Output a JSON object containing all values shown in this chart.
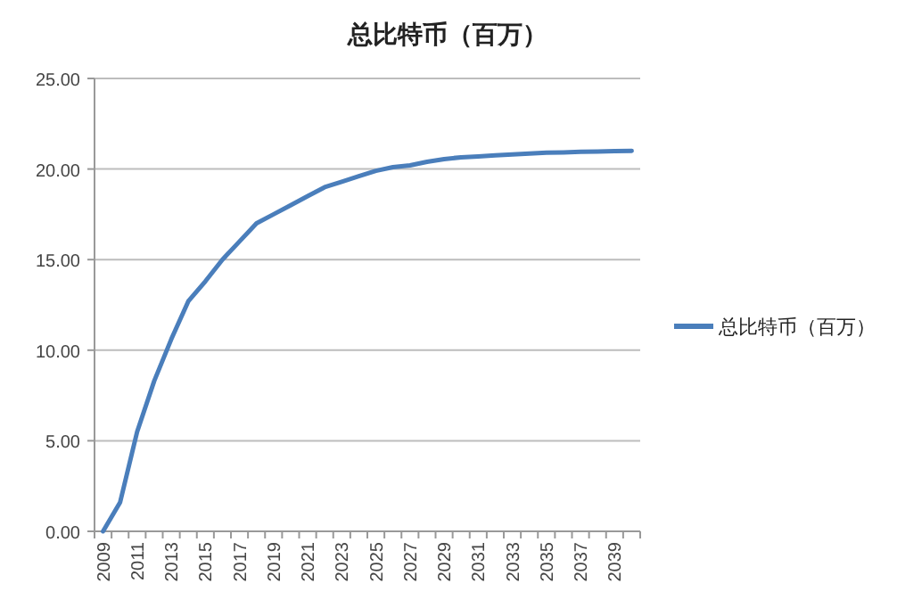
{
  "chart_data": {
    "type": "line",
    "title": "总比特币（百万）",
    "categories": [
      "2009",
      null,
      "2011",
      null,
      "2013",
      null,
      "2015",
      null,
      "2017",
      null,
      "2019",
      null,
      "2021",
      null,
      "2023",
      null,
      "2025",
      null,
      "2027",
      null,
      "2029",
      null,
      "2031",
      null,
      "2033",
      null,
      "2035",
      null,
      "2037",
      null,
      "2039",
      null
    ],
    "series": [
      {
        "name": "总比特币（百万）",
        "color": "#4a7ebb",
        "values": [
          0,
          1.6,
          5.5,
          8.3,
          10.6,
          12.7,
          13.8,
          15.0,
          16.0,
          17.0,
          17.5,
          18.0,
          18.5,
          19.0,
          19.3,
          19.6,
          19.9,
          20.1,
          20.2,
          20.4,
          20.55,
          20.65,
          20.7,
          20.75,
          20.8,
          20.85,
          20.9,
          20.92,
          20.95,
          20.97,
          20.99,
          21.0
        ]
      }
    ],
    "ylim": [
      0,
      25
    ],
    "yticks": [
      {
        "value": 0,
        "label": "0.00"
      },
      {
        "value": 5,
        "label": "5.00"
      },
      {
        "value": 10,
        "label": "10.00"
      },
      {
        "value": 15,
        "label": "15.00"
      },
      {
        "value": 20,
        "label": "20.00"
      },
      {
        "value": 25,
        "label": "25.00"
      }
    ],
    "grid": "y",
    "legend": "right"
  }
}
